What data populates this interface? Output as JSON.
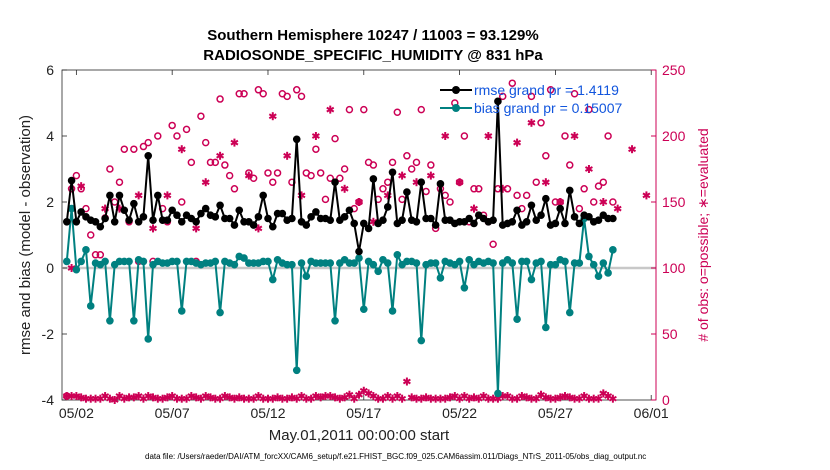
{
  "chart_data": {
    "type": "line",
    "title_line1": "Southern Hemisphere 10247 / 11003 = 93.129%",
    "title_line2": "RADIOSONDE_SPECIFIC_HUMIDITY @ 831 hPa",
    "xlabel": "May.01,2011 00:00:00 start",
    "ylabel_left": "rmse and bias (model - observation)",
    "ylabel_right": "# of obs: o=possible; ∗=evaluated",
    "footer": "data file: /Users/raeder/DAI/ATM_forcXX/CAM6_setup/f.e21.FHIST_BGC.f09_025.CAM6assim.011/Diags_NTrS_2011-05/obs_diag_output.nc",
    "x_ticks": [
      {
        "day": 2,
        "label": "05/02"
      },
      {
        "day": 7,
        "label": "05/07"
      },
      {
        "day": 12,
        "label": "05/12"
      },
      {
        "day": 17,
        "label": "05/17"
      },
      {
        "day": 22,
        "label": "05/22"
      },
      {
        "day": 27,
        "label": "05/27"
      },
      {
        "day": 32,
        "label": "06/01"
      }
    ],
    "xlim": [
      1.25,
      32.25
    ],
    "ylim_left": [
      -4,
      6
    ],
    "yticks_left": [
      -4,
      -2,
      0,
      2,
      4,
      6
    ],
    "ylim_right": [
      0,
      250
    ],
    "yticks_right": [
      0,
      50,
      100,
      150,
      200,
      250
    ],
    "start_day": 1.5,
    "step_days": 0.25,
    "series": [
      {
        "name": "rmse grand pr = 1.4119",
        "color": "#000000",
        "values": [
          1.4,
          2.65,
          1.4,
          1.7,
          1.55,
          1.45,
          1.4,
          1.25,
          1.5,
          2.2,
          1.4,
          2.2,
          1.75,
          1.45,
          1.95,
          1.4,
          1.55,
          3.4,
          1.45,
          2.2,
          1.45,
          1.45,
          1.75,
          1.6,
          1.4,
          1.6,
          1.5,
          1.4,
          1.65,
          1.8,
          1.6,
          1.55,
          1.9,
          1.5,
          1.5,
          1.3,
          1.75,
          1.4,
          1.4,
          1.3,
          1.55,
          2.2,
          1.5,
          1.25,
          1.65,
          1.65,
          1.45,
          1.5,
          3.9,
          1.4,
          1.3,
          1.55,
          1.7,
          1.5,
          1.5,
          1.45,
          2.6,
          1.45,
          1.55,
          1.75,
          1.35,
          0.5,
          1.35,
          1.2,
          2.7,
          1.35,
          1.45,
          1.85,
          2.9,
          1.35,
          1.45,
          2.3,
          1.45,
          1.4,
          2.6,
          1.5,
          1.5,
          1.3,
          2.55,
          1.45,
          1.45,
          1.35,
          1.4,
          1.4,
          1.5,
          1.35,
          1.6,
          1.5,
          1.4,
          1.45,
          5.05,
          1.3,
          1.35,
          1.4,
          1.75,
          1.3,
          1.4,
          1.9,
          1.45,
          1.6,
          2.1,
          1.3,
          1.35,
          1.8,
          1.35,
          2.35,
          1.55,
          1.35,
          1.6,
          1.55,
          1.4,
          1.45,
          1.6,
          1.5,
          1.5
        ]
      },
      {
        "name": "bias grand pr = 0.15007",
        "color": "#008080",
        "values": [
          0.2,
          1.8,
          -0.05,
          0.2,
          0.55,
          -1.15,
          0.15,
          0.1,
          0.2,
          -1.6,
          0.1,
          0.2,
          0.2,
          0.2,
          -1.6,
          0.25,
          0.2,
          -2.15,
          0.1,
          0.2,
          0.15,
          0.15,
          0.2,
          0.2,
          -1.3,
          0.2,
          0.2,
          0.15,
          0.1,
          0.15,
          0.15,
          0.2,
          -1.35,
          0.2,
          0.15,
          0.1,
          0.35,
          0.3,
          0.15,
          0.15,
          0.15,
          0.2,
          0.2,
          -0.35,
          0.25,
          0.15,
          0.1,
          0.1,
          -3.1,
          0.15,
          -0.25,
          0.2,
          0.15,
          0.15,
          0.15,
          0.15,
          -1.6,
          0.15,
          0.25,
          0.15,
          0.15,
          0.3,
          -1.25,
          0.2,
          0.1,
          -0.1,
          0.25,
          0.15,
          -1.3,
          0.4,
          0.1,
          0.2,
          0.2,
          0.15,
          -2.2,
          0.1,
          0.15,
          0.15,
          -0.3,
          0.2,
          0.15,
          0.1,
          0.2,
          -0.6,
          0.25,
          0.1,
          0.2,
          0.15,
          0.2,
          0.15,
          -3.8,
          0.15,
          0.25,
          0.15,
          -1.55,
          0.2,
          0.2,
          -0.35,
          0.15,
          0.2,
          -1.8,
          0.1,
          0.1,
          0.25,
          0.2,
          -1.35,
          0.15,
          0.15,
          1.5,
          0.35,
          0.1,
          -0.25,
          0.15,
          -0.15,
          0.55
        ]
      },
      {
        "name": "possible obs",
        "color": "#cc0055",
        "marker": "o",
        "axis": "right",
        "values": [
          3,
          160,
          170,
          160,
          145,
          125,
          110,
          110,
          138,
          175,
          150,
          165,
          190,
          135,
          190,
          105,
          192,
          195,
          105,
          200,
          145,
          135,
          208,
          200,
          150,
          205,
          180,
          105,
          215,
          195,
          180,
          180,
          228,
          178,
          170,
          160,
          232,
          232,
          172,
          168,
          235,
          232,
          172,
          165,
          172,
          232,
          230,
          165,
          235,
          230,
          172,
          170,
          190,
          172,
          152,
          168,
          198,
          168,
          175,
          220,
          145,
          150,
          220,
          180,
          178,
          152,
          160,
          165,
          180,
          218,
          152,
          185,
          175,
          180,
          220,
          158,
          178,
          130,
          160,
          155,
          150,
          225,
          165,
          200,
          135,
          160,
          160,
          140,
          135,
          118,
          160,
          230,
          160,
          240,
          155,
          145,
          155,
          230,
          165,
          210,
          185,
          235,
          150,
          150,
          200,
          178,
          232,
          145,
          160,
          220,
          150,
          162,
          165,
          200,
          150
        ]
      },
      {
        "name": "evaluated obs",
        "color": "#cc0055",
        "marker": "*",
        "axis": "right",
        "values": [
          3,
          3,
          3,
          2,
          1,
          1,
          1,
          1,
          3,
          1,
          0,
          3,
          1,
          2,
          2,
          3,
          1,
          3,
          2,
          1,
          1,
          2,
          3,
          1,
          1,
          1,
          3,
          2,
          1,
          3,
          2,
          1,
          1,
          3,
          2,
          1,
          2,
          1,
          1,
          1,
          3,
          1,
          1,
          1,
          2,
          1,
          1,
          2,
          1,
          3,
          1,
          1,
          3,
          2,
          3,
          3,
          2,
          1,
          2,
          4,
          1,
          4,
          7,
          5,
          3,
          1,
          1,
          3,
          1,
          3,
          1,
          14,
          2,
          1,
          1,
          2,
          1,
          1,
          1,
          1,
          2,
          3,
          1,
          3,
          1,
          2,
          1,
          3,
          1,
          1,
          1,
          3,
          3,
          1,
          1,
          3,
          2,
          1,
          1,
          4,
          2,
          1,
          1,
          2,
          3,
          2,
          1,
          1,
          3,
          1,
          1,
          1,
          5,
          3,
          1
        ]
      }
    ],
    "evaluated_upper": [
      {
        "day": 1.75,
        "value": 100
      },
      {
        "day": 2.25,
        "value": 162
      },
      {
        "day": 3.5,
        "value": 145
      },
      {
        "day": 4.25,
        "value": 145
      },
      {
        "day": 5.25,
        "value": 155
      },
      {
        "day": 6.0,
        "value": 130
      },
      {
        "day": 6.75,
        "value": 155
      },
      {
        "day": 7.5,
        "value": 190
      },
      {
        "day": 8.25,
        "value": 130
      },
      {
        "day": 8.75,
        "value": 165
      },
      {
        "day": 9.5,
        "value": 185
      },
      {
        "day": 10.25,
        "value": 195
      },
      {
        "day": 11.0,
        "value": 170
      },
      {
        "day": 11.5,
        "value": 130
      },
      {
        "day": 12.25,
        "value": 215
      },
      {
        "day": 13.0,
        "value": 185
      },
      {
        "day": 13.75,
        "value": 155
      },
      {
        "day": 14.5,
        "value": 200
      },
      {
        "day": 15.25,
        "value": 220
      },
      {
        "day": 16.0,
        "value": 160
      },
      {
        "day": 16.75,
        "value": 150
      },
      {
        "day": 17.5,
        "value": 135
      },
      {
        "day": 18.25,
        "value": 155
      },
      {
        "day": 19.0,
        "value": 170
      },
      {
        "day": 19.75,
        "value": 165
      },
      {
        "day": 20.5,
        "value": 170
      },
      {
        "day": 21.25,
        "value": 200
      },
      {
        "day": 22.0,
        "value": 165
      },
      {
        "day": 22.75,
        "value": 145
      },
      {
        "day": 23.5,
        "value": 200
      },
      {
        "day": 24.25,
        "value": 160
      },
      {
        "day": 25.0,
        "value": 195
      },
      {
        "day": 25.75,
        "value": 210
      },
      {
        "day": 26.5,
        "value": 165
      },
      {
        "day": 27.25,
        "value": 150
      },
      {
        "day": 28.0,
        "value": 200
      },
      {
        "day": 28.75,
        "value": 175
      },
      {
        "day": 29.5,
        "value": 150
      },
      {
        "day": 30.25,
        "value": 145
      },
      {
        "day": 31.0,
        "value": 190
      },
      {
        "day": 31.75,
        "value": 155
      }
    ],
    "zero_line": 0,
    "legend_position": "top-right"
  }
}
